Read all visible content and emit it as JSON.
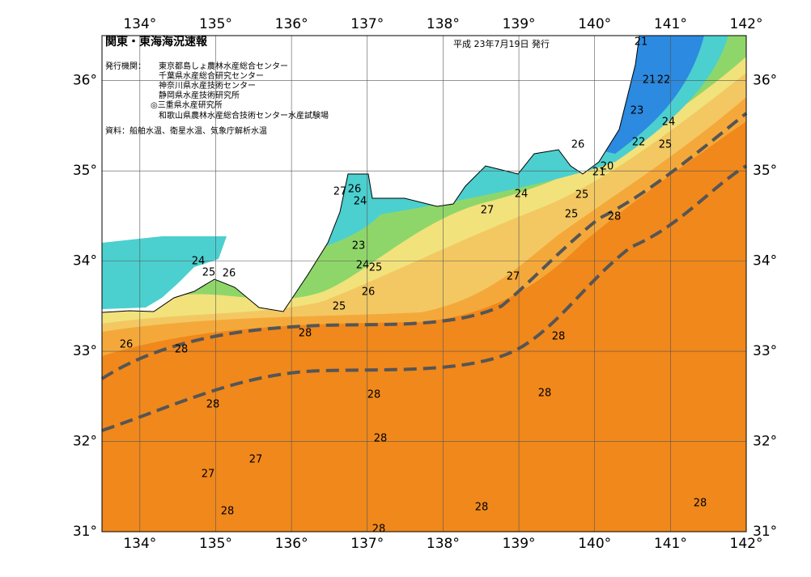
{
  "map": {
    "title": "関東・東海海況速報",
    "date": "平成 23年7月19日 発行",
    "issuer_label": "発行機関：",
    "issuers": [
      "東京都島しょ農林水産総合センター",
      "千葉県水産総合研究センター",
      "神奈川県水産技術センター",
      "静岡県水産技術研究所",
      "◎三重県水産研究所",
      "和歌山県農林水産総合技術センター水産試験場"
    ],
    "source": "資料：船舶水温、衛星水温、気象庁解析水温",
    "xlim": [
      133.5,
      142
    ],
    "ylim": [
      31,
      36.5
    ],
    "xticks": [
      {
        "value": 134,
        "label": "134°"
      },
      {
        "value": 135,
        "label": "135°"
      },
      {
        "value": 136,
        "label": "136°"
      },
      {
        "value": 137,
        "label": "137°"
      },
      {
        "value": 138,
        "label": "138°"
      },
      {
        "value": 139,
        "label": "139°"
      },
      {
        "value": 140,
        "label": "140°"
      },
      {
        "value": 141,
        "label": "141°"
      },
      {
        "value": 142,
        "label": "142°"
      }
    ],
    "yticks": [
      {
        "value": 31,
        "label": "31°"
      },
      {
        "value": 32,
        "label": "32°"
      },
      {
        "value": 33,
        "label": "33°"
      },
      {
        "value": 34,
        "label": "34°"
      },
      {
        "value": 35,
        "label": "35°"
      },
      {
        "value": 36,
        "label": "36°"
      }
    ],
    "contour_labels": [
      21,
      21,
      22,
      23,
      24,
      22,
      25,
      26,
      20,
      21,
      24,
      25,
      27,
      25,
      28,
      27,
      26,
      24,
      24,
      25,
      26,
      23,
      24,
      25,
      27,
      26,
      25,
      28,
      26,
      28,
      28,
      28,
      28,
      28,
      28,
      27,
      27,
      28,
      28,
      28,
      28
    ]
  }
}
